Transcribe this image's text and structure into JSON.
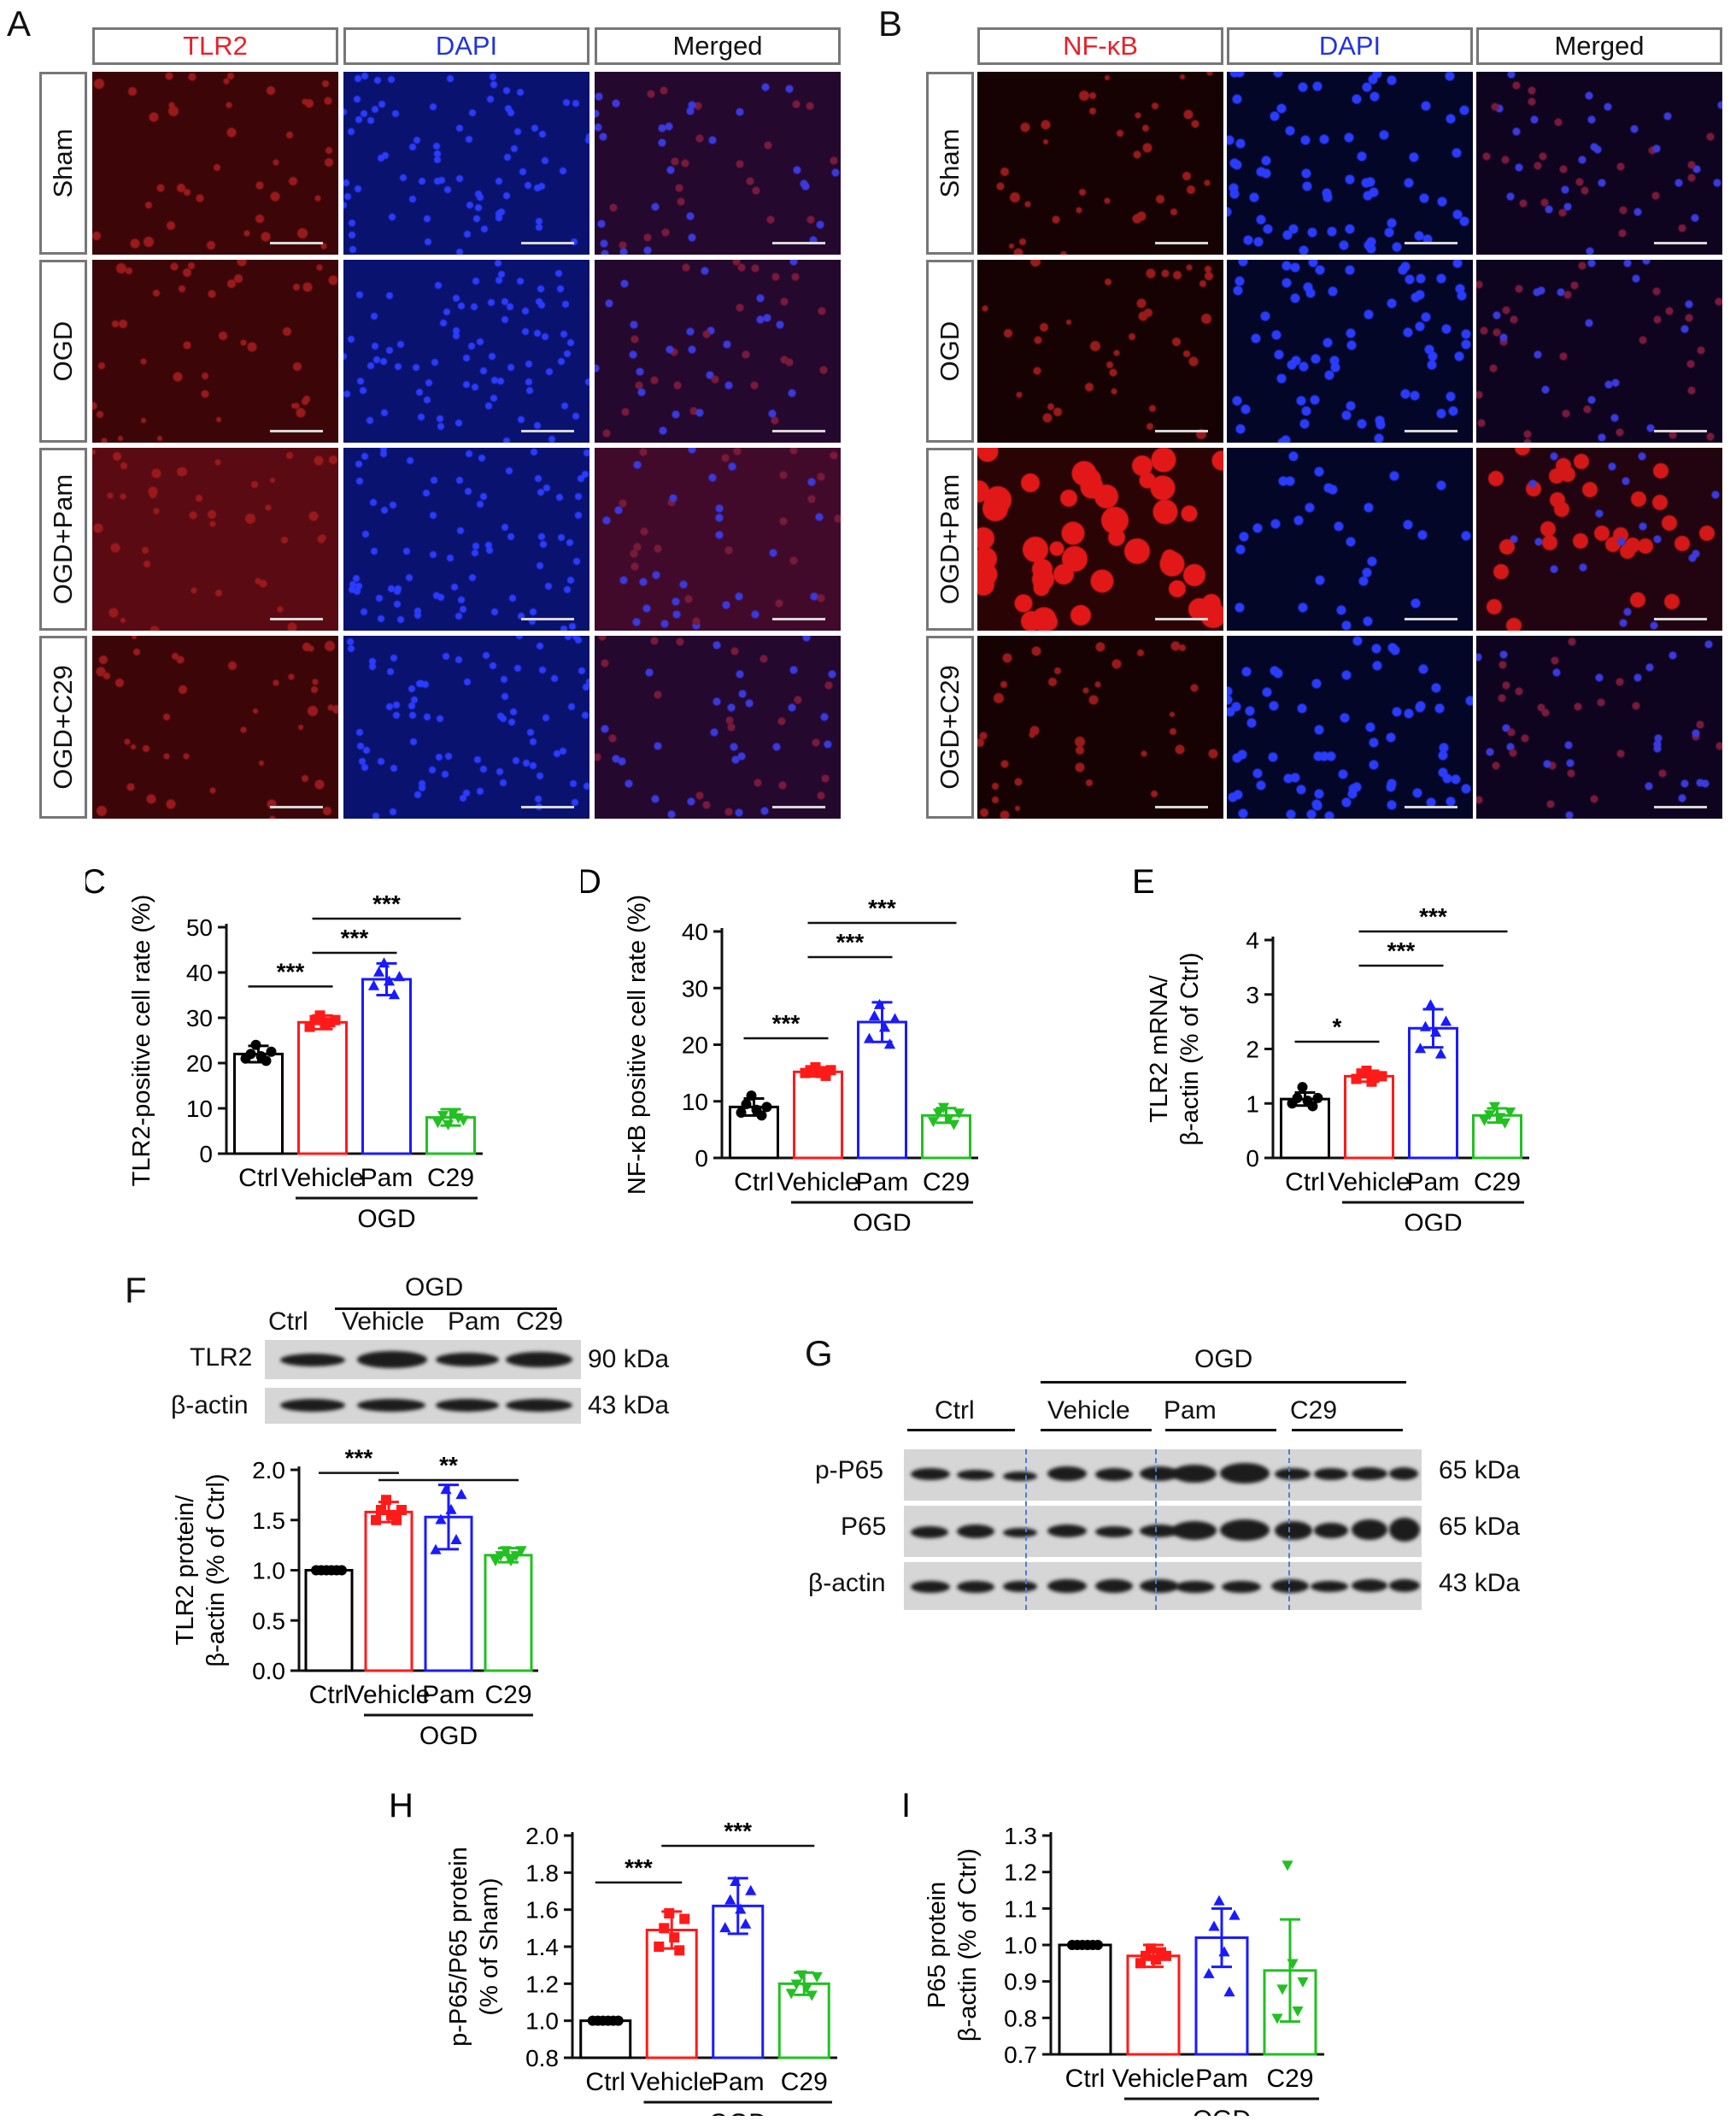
{
  "panels": {
    "A": {
      "letter": "A",
      "columns": [
        "TLR2",
        "DAPI",
        "Merged"
      ],
      "column_colors": [
        "#e8202a",
        "#2233dd",
        "#111111"
      ],
      "rows": [
        "Sham",
        "OGD",
        "OGD+Pam",
        "OGD+C29"
      ]
    },
    "B": {
      "letter": "B",
      "columns": [
        "NF-κB",
        "DAPI",
        "Merged"
      ],
      "column_colors": [
        "#e8202a",
        "#2233dd",
        "#111111"
      ],
      "rows": [
        "Sham",
        "OGD",
        "OGD+Pam",
        "OGD+C29"
      ]
    },
    "F": {
      "letter": "F",
      "group": "OGD",
      "lanes": [
        "Ctrl",
        "Vehicle",
        "Pam",
        "C29"
      ],
      "rows": [
        {
          "label": "TLR2",
          "size": "90 kDa"
        },
        {
          "label": "β-actin",
          "size": "43 kDa"
        }
      ]
    },
    "G": {
      "letter": "G",
      "group": "OGD",
      "lanes": [
        "Ctrl",
        "Vehicle",
        "Pam",
        "C29"
      ],
      "rows": [
        {
          "label": "p-P65",
          "size": "65 kDa"
        },
        {
          "label": "P65",
          "size": "65 kDa"
        },
        {
          "label": "β-actin",
          "size": "43 kDa"
        }
      ]
    }
  },
  "colors": {
    "ctrl": "#000000",
    "vehicle": "#ff1a1a",
    "pam": "#1a1aff",
    "c29": "#22c022"
  },
  "chart_data": [
    {
      "id": "C",
      "letter": "C",
      "type": "bar",
      "categories": [
        "Ctrl",
        "Vehicle",
        "Pam",
        "C29"
      ],
      "group_label": "OGD",
      "values": [
        22,
        29,
        38.5,
        8
      ],
      "errors": [
        1.8,
        1.5,
        3.5,
        1.8
      ],
      "points": [
        [
          21,
          22,
          24,
          21.5,
          20.5,
          22.5
        ],
        [
          28,
          29.5,
          30.5,
          28.5,
          29,
          29.5
        ],
        [
          37,
          40,
          42,
          38,
          35,
          39
        ],
        [
          7,
          8.5,
          6.5,
          9,
          8,
          7.5
        ]
      ],
      "ylabel": "TLR2-positive cell rate (%)",
      "ylim": [
        0,
        50
      ],
      "yticks": [
        0,
        10,
        20,
        30,
        40,
        50
      ],
      "markers": [
        "circle",
        "square",
        "triangle",
        "triangle-down"
      ],
      "significance": [
        {
          "from": 0,
          "to": 1,
          "label": "***"
        },
        {
          "from": 1,
          "to": 2,
          "label": "***"
        },
        {
          "from": 1,
          "to": 3,
          "label": "***"
        }
      ]
    },
    {
      "id": "D",
      "letter": "D",
      "type": "bar",
      "categories": [
        "Ctrl",
        "Vehicle",
        "Pam",
        "C29"
      ],
      "group_label": "OGD",
      "values": [
        9,
        15.2,
        24,
        7.5
      ],
      "errors": [
        1.5,
        0.8,
        3.5,
        1.3
      ],
      "points": [
        [
          8,
          9.5,
          11,
          8.5,
          7.5,
          9
        ],
        [
          15,
          15.5,
          16,
          15,
          14.5,
          15.5
        ],
        [
          21,
          25,
          27,
          23,
          20,
          24.5
        ],
        [
          6.5,
          8,
          9,
          7,
          6,
          8
        ]
      ],
      "ylabel": "NF-κB positive cell rate (%)",
      "ylim": [
        0,
        40
      ],
      "yticks": [
        0,
        10,
        20,
        30,
        40
      ],
      "markers": [
        "circle",
        "square",
        "triangle",
        "triangle-down"
      ],
      "significance": [
        {
          "from": 0,
          "to": 1,
          "label": "***"
        },
        {
          "from": 1,
          "to": 2,
          "label": "***"
        },
        {
          "from": 1,
          "to": 3,
          "label": "***"
        }
      ]
    },
    {
      "id": "E",
      "letter": "E",
      "type": "bar",
      "categories": [
        "Ctrl",
        "Vehicle",
        "Pam",
        "C29"
      ],
      "group_label": "OGD",
      "values": [
        1.08,
        1.5,
        2.38,
        0.78
      ],
      "errors": [
        0.12,
        0.1,
        0.35,
        0.13
      ],
      "points": [
        [
          1.0,
          1.1,
          1.3,
          1.05,
          0.95,
          1.1
        ],
        [
          1.45,
          1.55,
          1.6,
          1.4,
          1.5,
          1.5
        ],
        [
          2.0,
          2.4,
          2.8,
          2.3,
          1.9,
          2.5
        ],
        [
          0.7,
          0.8,
          0.95,
          0.75,
          0.65,
          0.85
        ]
      ],
      "ylabel": "TLR2 mRNA/\nβ-actin (% of Ctrl)",
      "ylim": [
        0,
        4
      ],
      "yticks": [
        0,
        1,
        2,
        3,
        4
      ],
      "markers": [
        "circle",
        "square",
        "triangle",
        "triangle-down"
      ],
      "significance": [
        {
          "from": 0,
          "to": 1,
          "label": "*"
        },
        {
          "from": 1,
          "to": 2,
          "label": "***"
        },
        {
          "from": 1,
          "to": 3,
          "label": "***"
        }
      ]
    },
    {
      "id": "F",
      "letter": "",
      "type": "bar",
      "categories": [
        "Ctrl",
        "Vehicle",
        "Pam",
        "C29"
      ],
      "group_label": "OGD",
      "values": [
        1.0,
        1.58,
        1.53,
        1.15
      ],
      "errors": [
        0.0,
        0.1,
        0.32,
        0.07
      ],
      "points": [
        [
          1,
          1,
          1,
          1,
          1,
          1
        ],
        [
          1.5,
          1.6,
          1.7,
          1.55,
          1.5,
          1.6
        ],
        [
          1.2,
          1.5,
          1.8,
          1.6,
          1.3,
          1.75
        ],
        [
          1.1,
          1.15,
          1.2,
          1.1,
          1.15,
          1.2
        ]
      ],
      "ylabel": "TLR2 protein/\nβ-actin (% of Ctrl)",
      "ylim": [
        0,
        2.0
      ],
      "yticks": [
        "0.0",
        "0.5",
        "1.0",
        "1.5",
        "2.0"
      ],
      "markers": [
        "circle",
        "square",
        "triangle",
        "triangle-down"
      ],
      "significance": [
        {
          "from": 0,
          "to": 1,
          "label": "***"
        },
        {
          "from": 1,
          "to": 3,
          "label": "**"
        }
      ]
    },
    {
      "id": "H",
      "letter": "H",
      "type": "bar",
      "categories": [
        "Ctrl",
        "Vehicle",
        "Pam",
        "C29"
      ],
      "group_label": "OGD",
      "values": [
        1.0,
        1.49,
        1.62,
        1.2
      ],
      "errors": [
        0.0,
        0.1,
        0.15,
        0.06
      ],
      "points": [
        [
          1,
          1,
          1,
          1,
          1,
          1
        ],
        [
          1.4,
          1.5,
          1.58,
          1.45,
          1.38,
          1.55
        ],
        [
          1.5,
          1.65,
          1.75,
          1.6,
          1.52,
          1.7
        ],
        [
          1.15,
          1.2,
          1.25,
          1.18,
          1.14,
          1.24
        ]
      ],
      "ylabel": "p-P65/P65 protein\n(% of Sham)",
      "ylim": [
        0.8,
        2.0
      ],
      "yticks": [
        "0.8",
        "1.0",
        "1.2",
        "1.4",
        "1.6",
        "1.8",
        "2.0"
      ],
      "markers": [
        "circle",
        "square",
        "triangle",
        "triangle-down"
      ],
      "significance": [
        {
          "from": 0,
          "to": 1,
          "label": "***"
        },
        {
          "from": 1,
          "to": 3,
          "label": "***"
        }
      ]
    },
    {
      "id": "I",
      "letter": "I",
      "type": "bar",
      "categories": [
        "Ctrl",
        "Vehicle",
        "Pam",
        "C29"
      ],
      "group_label": "OGD",
      "values": [
        1.0,
        0.97,
        1.02,
        0.93
      ],
      "errors": [
        0.0,
        0.03,
        0.08,
        0.14
      ],
      "points": [
        [
          1,
          1,
          1,
          1,
          1,
          1
        ],
        [
          0.95,
          0.97,
          0.99,
          0.96,
          0.98,
          0.97
        ],
        [
          0.92,
          1.05,
          1.12,
          0.98,
          0.87,
          1.08
        ],
        [
          0.8,
          0.88,
          1.22,
          0.95,
          0.82,
          0.9
        ]
      ],
      "ylabel": "P65 protein\nβ-actin (% of Ctrl)",
      "ylim": [
        0.7,
        1.3
      ],
      "yticks": [
        "0.7",
        "0.8",
        "0.9",
        "1.0",
        "1.1",
        "1.2",
        "1.3"
      ],
      "markers": [
        "circle",
        "square",
        "triangle",
        "triangle-down"
      ],
      "significance": []
    }
  ]
}
